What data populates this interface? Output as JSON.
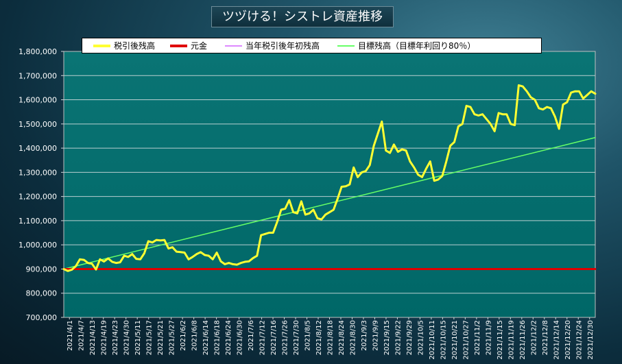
{
  "chart_data": {
    "type": "line",
    "title": "ツヅける！シストレ資産推移",
    "ylim": [
      700000,
      1800000
    ],
    "yticks": [
      700000,
      800000,
      900000,
      1000000,
      1100000,
      1200000,
      1300000,
      1400000,
      1500000,
      1600000,
      1700000,
      1800000
    ],
    "ytick_labels": [
      "700,000",
      "800,000",
      "900,000",
      "1,000,000",
      "1,100,000",
      "1,200,000",
      "1,300,000",
      "1,400,000",
      "1,500,000",
      "1,600,000",
      "1,700,000",
      "1,800,000"
    ],
    "xtick_labels": [
      "2021/4/1",
      "2021/4/7",
      "2021/4/13",
      "2021/4/19",
      "2021/4/23",
      "2021/4/30",
      "2021/5/11",
      "2021/5/17",
      "2021/5/21",
      "2021/5/27",
      "2021/6/2",
      "2021/6/8",
      "2021/6/14",
      "2021/6/18",
      "2021/6/24",
      "2021/6/30",
      "2021/7/6",
      "2021/7/12",
      "2021/7/16",
      "2021/7/26",
      "2021/7/30",
      "2021/8/5",
      "2021/8/12",
      "2021/8/18",
      "2021/8/24",
      "2021/8/30",
      "2021/9/3",
      "2021/9/9",
      "2021/9/15",
      "2021/9/22",
      "2021/9/29",
      "2021/10/5",
      "2021/10/11",
      "2021/10/15",
      "2021/10/21",
      "2021/10/27",
      "2021/11/2",
      "2021/11/9",
      "2021/11/15",
      "2021/11/19",
      "2021/11/26",
      "2021/12/2",
      "2021/12/8",
      "2021/12/14",
      "2021/12/20",
      "2021/12/24",
      "2021/12/30"
    ],
    "grid": true,
    "legend_position": "top",
    "series": [
      {
        "name": "税引後残高",
        "color": "#ffff33",
        "values": [
          900000,
          892000,
          897000,
          912000,
          940000,
          938000,
          925000,
          922000,
          898000,
          940000,
          931000,
          944000,
          930000,
          925000,
          928000,
          955000,
          950000,
          962000,
          942000,
          940000,
          965000,
          1015000,
          1010000,
          1020000,
          1018000,
          1020000,
          985000,
          990000,
          972000,
          970000,
          968000,
          940000,
          950000,
          962000,
          970000,
          958000,
          955000,
          940000,
          968000,
          932000,
          920000,
          925000,
          920000,
          918000,
          925000,
          930000,
          932000,
          945000,
          955000,
          1040000,
          1045000,
          1050000,
          1050000,
          1095000,
          1145000,
          1150000,
          1185000,
          1135000,
          1130000,
          1180000,
          1125000,
          1130000,
          1145000,
          1110000,
          1105000,
          1125000,
          1135000,
          1145000,
          1190000,
          1240000,
          1242000,
          1250000,
          1320000,
          1280000,
          1300000,
          1305000,
          1330000,
          1410000,
          1460000,
          1510000,
          1390000,
          1380000,
          1415000,
          1385000,
          1395000,
          1390000,
          1345000,
          1320000,
          1290000,
          1280000,
          1315000,
          1345000,
          1265000,
          1270000,
          1285000,
          1345000,
          1410000,
          1425000,
          1490000,
          1500000,
          1575000,
          1570000,
          1540000,
          1535000,
          1540000,
          1520000,
          1500000,
          1470000,
          1545000,
          1540000,
          1540000,
          1500000,
          1495000,
          1660000,
          1655000,
          1635000,
          1610000,
          1600000,
          1565000,
          1560000,
          1570000,
          1565000,
          1530000,
          1480000,
          1580000,
          1590000,
          1630000,
          1635000,
          1635000,
          1605000,
          1620000,
          1635000,
          1625000
        ]
      },
      {
        "name": "元金",
        "color": "#e00000",
        "values": [
          900000,
          900000
        ]
      },
      {
        "name": "当年税引後年初残高",
        "color": "#dd88ff",
        "values": []
      },
      {
        "name": "目標残高（目標年利回り80％）",
        "color": "#66ff66",
        "values": [
          900000,
          1444000
        ]
      }
    ]
  }
}
